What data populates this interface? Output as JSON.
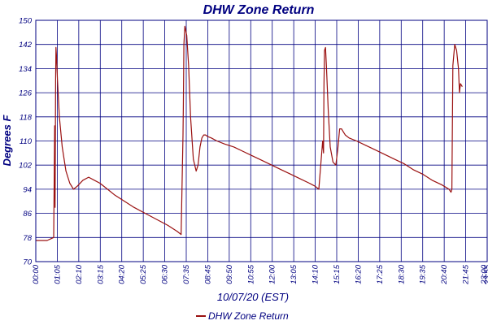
{
  "chart_data": {
    "type": "line",
    "title": "DHW Zone Return",
    "xlabel": "10/07/20 (EST)",
    "ylabel": "Degrees F",
    "ylim": [
      70,
      150
    ],
    "y_ticks": [
      "70",
      "78",
      "86",
      "94",
      "102",
      "110",
      "118",
      "126",
      "134",
      "142",
      "150"
    ],
    "x_ticks": [
      "00:00",
      "01:05",
      "02:10",
      "03:15",
      "04:20",
      "05:25",
      "06:30",
      "07:35",
      "08:45",
      "09:50",
      "10:55",
      "12:00",
      "13:05",
      "14:10",
      "15:15",
      "16:20",
      "17:25",
      "18:30",
      "19:35",
      "20:40",
      "21:45",
      "23:00",
      "23:55"
    ],
    "x_range_hours": [
      0,
      23.92
    ],
    "grid": true,
    "legend_position": "bottom-center",
    "colors": {
      "series": "#9a1010",
      "grid": "#000080",
      "text": "#000080"
    },
    "series": [
      {
        "name": "DHW Zone Return",
        "x_hours": [
          0.0,
          0.6,
          0.95,
          1.0,
          1.02,
          1.05,
          1.07,
          1.1,
          1.15,
          1.25,
          1.4,
          1.6,
          1.8,
          2.0,
          2.2,
          2.5,
          2.8,
          3.1,
          3.4,
          3.8,
          4.2,
          4.7,
          5.2,
          5.8,
          6.4,
          7.0,
          7.5,
          7.7,
          7.8,
          7.82,
          7.85,
          7.9,
          8.0,
          8.1,
          8.2,
          8.35,
          8.5,
          8.6,
          8.7,
          8.8,
          8.9,
          9.0,
          9.1,
          9.3,
          9.6,
          10.0,
          10.5,
          11.0,
          11.5,
          12.0,
          12.5,
          13.0,
          13.5,
          14.0,
          14.5,
          14.8,
          15.0,
          15.2,
          15.25,
          15.27,
          15.3,
          15.35,
          15.4,
          15.5,
          15.6,
          15.75,
          15.9,
          16.0,
          16.1,
          16.2,
          16.3,
          16.4,
          16.6,
          17.0,
          17.5,
          18.0,
          18.5,
          19.0,
          19.5,
          20.0,
          20.5,
          21.0,
          21.5,
          21.9,
          22.0,
          22.05,
          22.1,
          22.2,
          22.3,
          22.4,
          22.45,
          22.5,
          22.6
        ],
        "values": [
          77,
          77,
          78,
          115,
          88,
          130,
          141,
          138,
          130,
          118,
          108,
          100,
          96,
          94,
          95,
          97,
          98,
          97,
          96,
          94,
          92,
          90,
          88,
          86,
          84,
          82,
          80,
          79,
          112,
          121,
          142,
          148,
          145,
          135,
          118,
          104,
          100,
          102,
          108,
          111,
          112,
          112,
          111.5,
          111,
          110,
          109,
          108,
          106.5,
          105,
          103.5,
          102,
          100.5,
          99,
          97.5,
          96,
          95,
          94,
          110,
          106,
          128,
          140,
          141,
          135,
          120,
          108,
          103,
          102,
          107,
          114,
          114,
          113,
          112,
          111,
          110,
          108.5,
          107,
          105.5,
          104,
          102.5,
          100.5,
          99,
          97,
          95.5,
          94,
          93,
          94,
          135,
          142,
          140,
          134,
          126,
          129,
          128
        ]
      }
    ]
  }
}
